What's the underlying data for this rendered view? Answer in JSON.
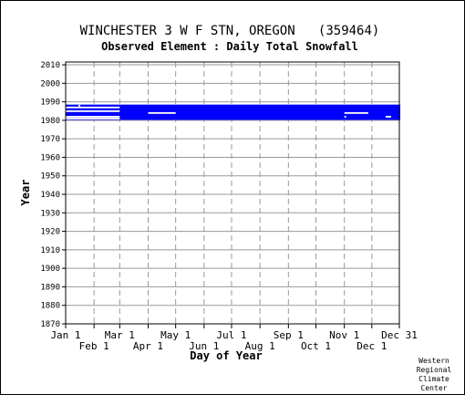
{
  "chart_data": {
    "type": "heatmap",
    "title": "WINCHESTER 3 W F STN, OREGON   (359464)",
    "subtitle": "Observed Element : Daily Total Snowfall",
    "xlabel": "Day of Year",
    "ylabel": "Year",
    "ylim": [
      1870,
      2011
    ],
    "yticks": [
      2010,
      2000,
      1990,
      1980,
      1970,
      1960,
      1950,
      1940,
      1930,
      1920,
      1910,
      1900,
      1890,
      1880,
      1870
    ],
    "xlim": [
      1,
      365
    ],
    "xticks_top": [
      {
        "day": 1,
        "label": "Jan 1"
      },
      {
        "day": 60,
        "label": "Mar 1"
      },
      {
        "day": 121,
        "label": "May 1"
      },
      {
        "day": 182,
        "label": "Jul 1"
      },
      {
        "day": 244,
        "label": "Sep 1"
      },
      {
        "day": 305,
        "label": "Nov 1"
      },
      {
        "day": 365,
        "label": "Dec 31"
      }
    ],
    "xticks_bottom": [
      {
        "day": 32,
        "label": "Feb 1"
      },
      {
        "day": 91,
        "label": "Apr 1"
      },
      {
        "day": 152,
        "label": "Jun 1"
      },
      {
        "day": 213,
        "label": "Aug 1"
      },
      {
        "day": 274,
        "label": "Oct 1"
      },
      {
        "day": 335,
        "label": "Dec 1"
      }
    ],
    "grid": true,
    "bar_color": "#0000ff",
    "series": [
      {
        "values": [
          {
            "year": 1988,
            "day_start": 1,
            "day_end": 365
          },
          {
            "year": 1987,
            "day_start": 1,
            "day_end": 365
          },
          {
            "year": 1986,
            "day_start": 1,
            "day_end": 365
          },
          {
            "year": 1985,
            "day_start": 1,
            "day_end": 365
          },
          {
            "year": 1984,
            "day_start": 1,
            "day_end": 365
          },
          {
            "year": 1983,
            "day_start": 1,
            "day_end": 365
          },
          {
            "year": 1982,
            "day_start": 1,
            "day_end": 365
          },
          {
            "year": 1981,
            "day_start": 1,
            "day_end": 365
          }
        ]
      }
    ],
    "gaps": [
      {
        "year": 1987,
        "day_start": 1,
        "day_end": 59
      },
      {
        "year": 1988,
        "day_start": 15,
        "day_end": 16
      },
      {
        "year": 1985,
        "day_start": 1,
        "day_end": 59
      },
      {
        "year": 1984,
        "day_start": 91,
        "day_end": 120
      },
      {
        "year": 1984,
        "day_start": 305,
        "day_end": 330
      },
      {
        "year": 1982,
        "day_start": 1,
        "day_end": 59
      },
      {
        "year": 1982,
        "day_start": 305,
        "day_end": 306
      },
      {
        "year": 1982,
        "day_start": 350,
        "day_end": 355
      },
      {
        "year": 1981,
        "day_start": 1,
        "day_end": 59
      }
    ]
  },
  "credit": [
    "Western",
    "Regional",
    "Climate",
    "Center"
  ]
}
